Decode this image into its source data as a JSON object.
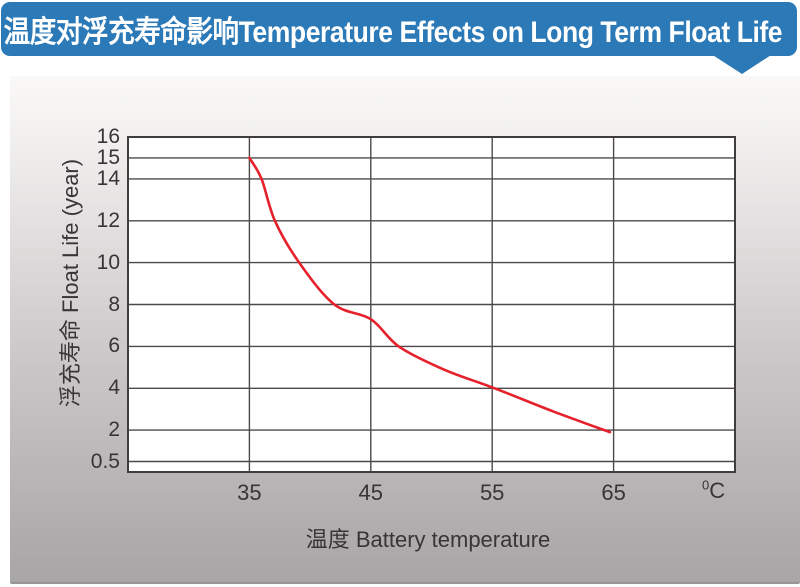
{
  "header": {
    "title": "温度对浮充寿命影响Temperature Effects on Long Term Float Life",
    "bg_color": "#2b79b7",
    "text_color": "#ffffff"
  },
  "chart_data": {
    "type": "line",
    "title": "温度对浮充寿命影响 Temperature Effects on Long Term Float Life",
    "xlabel": "温度  Battery temperature",
    "ylabel": "浮充寿命  Float Life (year)",
    "x_unit_sup": "0",
    "x_unit_base": "C",
    "xlim": [
      25,
      75
    ],
    "ylim": [
      0,
      16
    ],
    "x_ticks": [
      35,
      45,
      55,
      65
    ],
    "y_ticks": [
      0.5,
      2,
      4,
      6,
      8,
      10,
      12,
      14,
      15,
      16
    ],
    "grid": true,
    "legend": "none",
    "series": [
      {
        "name": "float-life-vs-temperature",
        "color": "#e5212b",
        "points": [
          [
            35,
            15
          ],
          [
            36,
            14
          ],
          [
            37.1,
            12
          ],
          [
            39.1,
            10
          ],
          [
            42,
            8
          ],
          [
            45,
            7.3
          ],
          [
            47.3,
            6
          ],
          [
            51,
            4.9
          ],
          [
            55.2,
            4
          ],
          [
            60,
            2.9
          ],
          [
            64.7,
            1.9
          ]
        ]
      }
    ],
    "colors": {
      "grid_line": "#4d494b",
      "plot_border": "#413d3f",
      "plot_bg": "#ffffff",
      "panel_top": "#faf9f8",
      "panel_bottom": "#a7a5a5",
      "curve": "#e5212b"
    }
  }
}
